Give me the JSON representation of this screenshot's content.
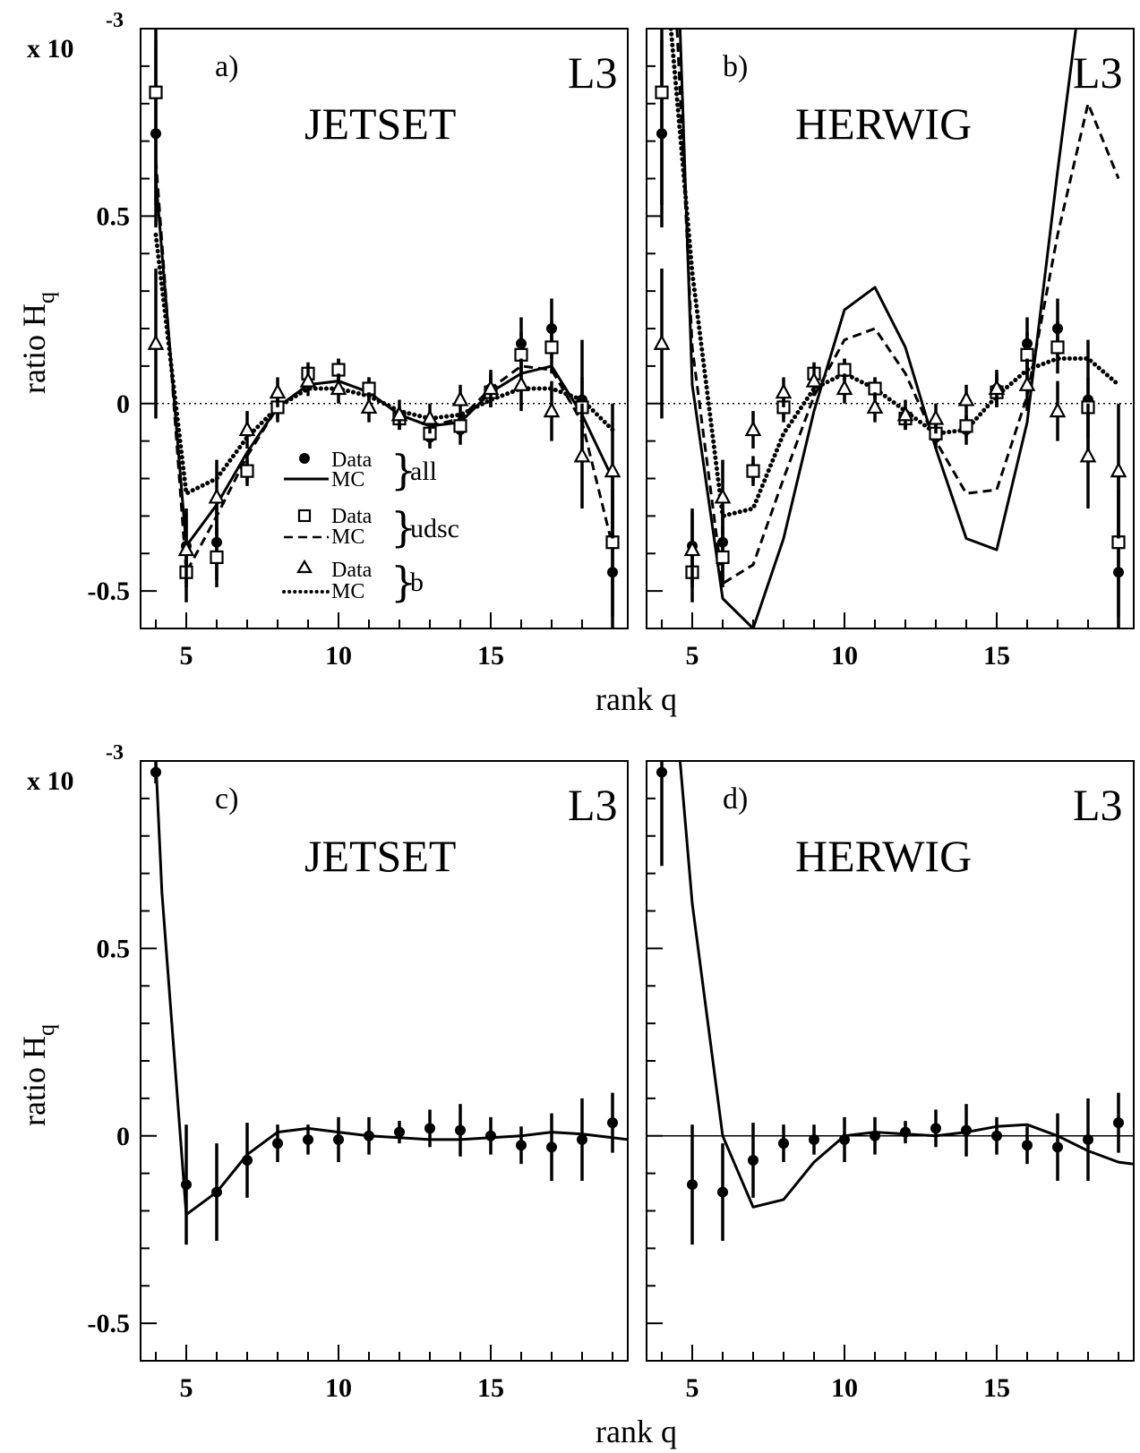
{
  "chart_data": [
    {
      "type": "scatter",
      "panel": "a)",
      "experiment": "L3",
      "generator": "JETSET",
      "xlabel": "rank q",
      "ylabel": "ratio H",
      "ylabel_sub": "q",
      "scale_note": "x 10",
      "scale_exp": "-3",
      "xlim": [
        3.5,
        19.5
      ],
      "ylim": [
        -0.6,
        1.0
      ],
      "xticks": [
        "5",
        "10",
        "15"
      ],
      "yticks": [
        "-0.5",
        "0",
        "0.5"
      ],
      "show_zero_line": "dotted",
      "legend": {
        "data_label": "Data",
        "mc_label": "MC",
        "groups": [
          "all",
          "udsc",
          "b"
        ]
      },
      "series": [
        {
          "group": "all",
          "kind": "data",
          "marker": "filled-circle",
          "x": [
            4,
            5,
            6,
            7,
            8,
            9,
            10,
            11,
            12,
            13,
            14,
            15,
            16,
            17,
            18,
            19
          ],
          "y": [
            0.72,
            -0.38,
            -0.37,
            -0.18,
            -0.01,
            0.07,
            0.09,
            0.04,
            -0.04,
            -0.09,
            -0.07,
            0.04,
            0.16,
            0.2,
            0.01,
            -0.45
          ],
          "err": [
            0.25,
            0.1,
            0.1,
            0.04,
            0.04,
            0.03,
            0.03,
            0.03,
            0.03,
            0.03,
            0.04,
            0.04,
            0.07,
            0.08,
            0.16,
            0.22
          ]
        },
        {
          "group": "udsc",
          "kind": "data",
          "marker": "open-square",
          "x": [
            4,
            5,
            6,
            7,
            8,
            9,
            10,
            11,
            12,
            13,
            14,
            15,
            16,
            17,
            18,
            19
          ],
          "y": [
            0.83,
            -0.45,
            -0.41,
            -0.18,
            -0.01,
            0.08,
            0.09,
            0.04,
            -0.04,
            -0.08,
            -0.06,
            0.03,
            0.13,
            0.15,
            -0.01,
            -0.37
          ],
          "err": [
            0.3,
            0.08,
            0.08,
            0.03,
            0.03,
            0.03,
            0.03,
            0.03,
            0.03,
            0.03,
            0.03,
            0.04,
            0.06,
            0.07,
            0.08,
            0.2
          ]
        },
        {
          "group": "b",
          "kind": "data",
          "marker": "open-triangle",
          "x": [
            4,
            5,
            6,
            7,
            8,
            9,
            10,
            11,
            12,
            13,
            14,
            15,
            16,
            17,
            18,
            19
          ],
          "y": [
            0.16,
            -0.39,
            -0.25,
            -0.07,
            0.03,
            0.06,
            0.04,
            -0.01,
            -0.03,
            -0.04,
            0.01,
            0.04,
            0.05,
            -0.02,
            -0.14,
            -0.18
          ],
          "err": [
            0.2,
            0.1,
            0.1,
            0.05,
            0.04,
            0.04,
            0.04,
            0.04,
            0.04,
            0.04,
            0.04,
            0.05,
            0.07,
            0.08,
            0.14,
            0.18
          ]
        },
        {
          "group": "all",
          "kind": "mc",
          "style": "solid",
          "x": [
            4,
            5,
            6,
            7,
            8,
            9,
            10,
            11,
            12,
            13,
            14,
            15,
            16,
            17,
            18,
            19
          ],
          "y": [
            0.6,
            -0.38,
            -0.27,
            -0.13,
            -0.01,
            0.05,
            0.06,
            0.03,
            -0.03,
            -0.06,
            -0.05,
            0.03,
            0.08,
            0.1,
            -0.03,
            -0.2
          ]
        },
        {
          "group": "udsc",
          "kind": "mc",
          "style": "dashed",
          "x": [
            4,
            5,
            6,
            7,
            8,
            9,
            10,
            11,
            12,
            13,
            14,
            15,
            16,
            17,
            18,
            19
          ],
          "y": [
            0.65,
            -0.45,
            -0.3,
            -0.14,
            -0.01,
            0.05,
            0.06,
            0.03,
            -0.03,
            -0.06,
            -0.04,
            0.04,
            0.1,
            0.09,
            -0.05,
            -0.38
          ]
        },
        {
          "group": "b",
          "kind": "mc",
          "style": "dotted",
          "x": [
            4,
            5,
            6,
            7,
            8,
            9,
            10,
            11,
            12,
            13,
            14,
            15,
            16,
            17,
            18,
            19
          ],
          "y": [
            0.45,
            -0.24,
            -0.2,
            -0.09,
            -0.01,
            0.04,
            0.04,
            0.02,
            -0.02,
            -0.04,
            -0.03,
            0.01,
            0.04,
            0.04,
            0.01,
            -0.07
          ]
        }
      ]
    },
    {
      "type": "scatter",
      "panel": "b)",
      "experiment": "L3",
      "generator": "HERWIG",
      "xlabel": "rank q",
      "xlim": [
        3.5,
        19.5
      ],
      "ylim": [
        -0.6,
        1.0
      ],
      "xticks": [
        "5",
        "10",
        "15"
      ],
      "show_zero_line": "dotted",
      "series": [
        {
          "group": "all",
          "kind": "data",
          "marker": "filled-circle",
          "x": [
            4,
            5,
            6,
            7,
            8,
            9,
            10,
            11,
            12,
            13,
            14,
            15,
            16,
            17,
            18,
            19
          ],
          "y": [
            0.72,
            -0.38,
            -0.37,
            -0.18,
            -0.01,
            0.07,
            0.09,
            0.04,
            -0.04,
            -0.09,
            -0.07,
            0.04,
            0.16,
            0.2,
            0.01,
            -0.45
          ],
          "err": [
            0.25,
            0.1,
            0.1,
            0.04,
            0.04,
            0.03,
            0.03,
            0.03,
            0.03,
            0.03,
            0.04,
            0.04,
            0.07,
            0.08,
            0.16,
            0.22
          ]
        },
        {
          "group": "udsc",
          "kind": "data",
          "marker": "open-square",
          "x": [
            4,
            5,
            6,
            7,
            8,
            9,
            10,
            11,
            12,
            13,
            14,
            15,
            16,
            17,
            18,
            19
          ],
          "y": [
            0.83,
            -0.45,
            -0.41,
            -0.18,
            -0.01,
            0.08,
            0.09,
            0.04,
            -0.04,
            -0.08,
            -0.06,
            0.03,
            0.13,
            0.15,
            -0.01,
            -0.37
          ],
          "err": [
            0.3,
            0.08,
            0.08,
            0.03,
            0.03,
            0.03,
            0.03,
            0.03,
            0.03,
            0.03,
            0.03,
            0.04,
            0.06,
            0.07,
            0.08,
            0.2
          ]
        },
        {
          "group": "b",
          "kind": "data",
          "marker": "open-triangle",
          "x": [
            4,
            5,
            6,
            7,
            8,
            9,
            10,
            11,
            12,
            13,
            14,
            15,
            16,
            17,
            18,
            19
          ],
          "y": [
            0.16,
            -0.39,
            -0.25,
            -0.07,
            0.03,
            0.06,
            0.04,
            -0.01,
            -0.03,
            -0.04,
            0.01,
            0.04,
            0.05,
            -0.02,
            -0.14,
            -0.18
          ],
          "err": [
            0.2,
            0.1,
            0.1,
            0.05,
            0.04,
            0.04,
            0.04,
            0.04,
            0.04,
            0.04,
            0.04,
            0.05,
            0.07,
            0.08,
            0.14,
            0.18
          ]
        },
        {
          "group": "all",
          "kind": "mc",
          "style": "solid",
          "x": [
            4.6,
            5,
            6,
            7,
            8,
            9,
            10,
            11,
            12,
            13,
            14,
            15,
            16,
            17,
            17.6
          ],
          "y": [
            1.0,
            0.05,
            -0.52,
            -0.6,
            -0.36,
            -0.02,
            0.25,
            0.31,
            0.15,
            -0.12,
            -0.36,
            -0.39,
            -0.05,
            0.62,
            1.0
          ]
        },
        {
          "group": "udsc",
          "kind": "mc",
          "style": "dashed",
          "x": [
            4.5,
            5,
            6,
            7,
            8,
            9,
            10,
            11,
            12,
            13,
            14,
            15,
            16,
            17,
            18,
            19
          ],
          "y": [
            1.0,
            0.15,
            -0.48,
            -0.43,
            -0.2,
            0.02,
            0.17,
            0.2,
            0.08,
            -0.1,
            -0.24,
            -0.23,
            0.02,
            0.45,
            0.8,
            0.6
          ]
        },
        {
          "group": "b",
          "kind": "mc",
          "style": "dotted",
          "x": [
            4.3,
            5,
            6,
            7,
            8,
            9,
            10,
            11,
            12,
            13,
            14,
            15,
            16,
            17,
            18,
            19
          ],
          "y": [
            1.0,
            0.35,
            -0.3,
            -0.28,
            -0.08,
            0.04,
            0.08,
            0.04,
            -0.02,
            -0.08,
            -0.07,
            0.02,
            0.09,
            0.12,
            0.12,
            0.05
          ]
        }
      ]
    },
    {
      "type": "scatter",
      "panel": "c)",
      "experiment": "L3",
      "generator": "JETSET",
      "xlabel": "rank q",
      "ylabel": "ratio H",
      "ylabel_sub": "q",
      "scale_note": "x 10",
      "scale_exp": "-3",
      "xlim": [
        3.5,
        19.5
      ],
      "ylim": [
        -0.6,
        1.0
      ],
      "xticks": [
        "5",
        "10",
        "15"
      ],
      "yticks": [
        "-0.5",
        "0",
        "0.5"
      ],
      "show_zero_line": "none",
      "series": [
        {
          "group": "all",
          "kind": "data",
          "marker": "filled-circle",
          "x": [
            4,
            5,
            6,
            7,
            8,
            9,
            10,
            11,
            12,
            13,
            14,
            15,
            16,
            17,
            18,
            19
          ],
          "y": [
            0.97,
            -0.13,
            -0.15,
            -0.065,
            -0.02,
            -0.01,
            -0.01,
            0.0,
            0.01,
            0.02,
            0.015,
            0.0,
            -0.025,
            -0.03,
            -0.01,
            0.035
          ],
          "err": [
            0.03,
            0.16,
            0.13,
            0.1,
            0.05,
            0.04,
            0.06,
            0.05,
            0.03,
            0.05,
            0.07,
            0.05,
            0.05,
            0.09,
            0.11,
            0.08
          ]
        },
        {
          "group": "all",
          "kind": "mc",
          "style": "solid",
          "x": [
            4,
            4.2,
            5,
            6,
            7,
            8,
            9,
            10,
            11,
            12,
            13,
            14,
            15,
            16,
            17,
            18,
            19,
            19.5
          ],
          "y": [
            1.0,
            0.65,
            -0.21,
            -0.15,
            -0.05,
            0.01,
            0.02,
            0.01,
            0.0,
            -0.005,
            -0.01,
            -0.01,
            -0.005,
            0.0,
            0.01,
            0.005,
            -0.005,
            -0.01
          ]
        }
      ]
    },
    {
      "type": "scatter",
      "panel": "d)",
      "experiment": "L3",
      "generator": "HERWIG",
      "xlabel": "rank q",
      "xlim": [
        3.5,
        19.5
      ],
      "ylim": [
        -0.6,
        1.0
      ],
      "xticks": [
        "5",
        "10",
        "15"
      ],
      "show_zero_line": "solid",
      "series": [
        {
          "group": "all",
          "kind": "data",
          "marker": "filled-circle",
          "x": [
            4,
            5,
            6,
            7,
            8,
            9,
            10,
            11,
            12,
            13,
            14,
            15,
            16,
            17,
            18,
            19
          ],
          "y": [
            0.97,
            -0.13,
            -0.15,
            -0.065,
            -0.02,
            -0.01,
            -0.01,
            0.0,
            0.01,
            0.02,
            0.015,
            0.0,
            -0.025,
            -0.03,
            -0.01,
            0.035
          ],
          "err": [
            0.25,
            0.16,
            0.13,
            0.1,
            0.05,
            0.04,
            0.06,
            0.05,
            0.03,
            0.05,
            0.07,
            0.05,
            0.05,
            0.09,
            0.11,
            0.08
          ]
        },
        {
          "group": "all",
          "kind": "mc",
          "style": "solid",
          "x": [
            4.6,
            5,
            6,
            7,
            8,
            9,
            10,
            11,
            12,
            13,
            14,
            15,
            16,
            17,
            18,
            19,
            19.5
          ],
          "y": [
            1.0,
            0.62,
            0.0,
            -0.19,
            -0.17,
            -0.07,
            0.0,
            0.01,
            0.005,
            0.0,
            0.01,
            0.025,
            0.03,
            0.0,
            -0.04,
            -0.07,
            -0.075
          ]
        }
      ]
    }
  ]
}
